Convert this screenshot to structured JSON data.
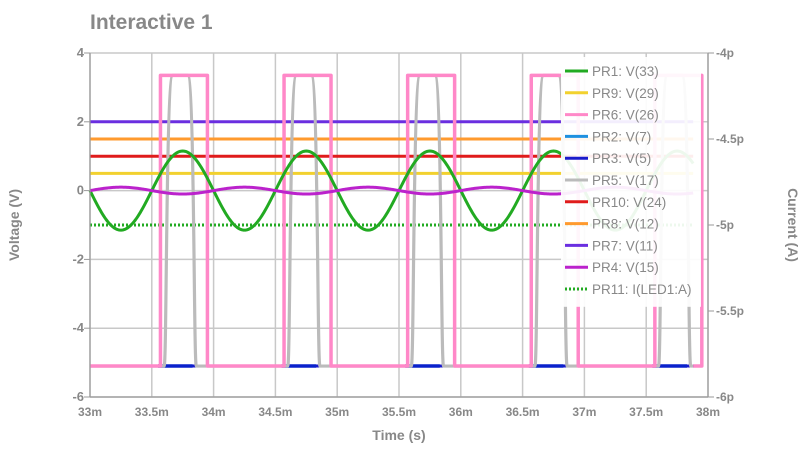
{
  "chart_data": {
    "type": "line",
    "title": "Interactive 1",
    "xlabel": "Time (s)",
    "ylabel_left": "Voltage (V)",
    "ylabel_right": "Current (A)",
    "xlim": [
      33,
      38
    ],
    "ylim_left": [
      -6,
      4
    ],
    "ylim_right": [
      -6,
      -4
    ],
    "x_ticks": [
      33,
      33.5,
      34,
      34.5,
      35,
      35.5,
      36,
      36.5,
      37,
      37.5,
      38
    ],
    "x_tick_labels": [
      "33m",
      "33.5m",
      "34m",
      "34.5m",
      "35m",
      "35.5m",
      "36m",
      "36.5m",
      "37m",
      "37.5m",
      "38m"
    ],
    "y_left_ticks": [
      4,
      2,
      0,
      -2,
      -4,
      -6
    ],
    "y_left_tick_labels": [
      "4",
      "2",
      "0",
      "-2",
      "-4",
      "-6"
    ],
    "y_right_ticks": [
      -4,
      -4.5,
      -5,
      -5.5,
      -6
    ],
    "y_right_tick_labels": [
      "-4p",
      "-4.5p",
      "-5p",
      "-5.5p",
      "-6p"
    ],
    "x_unit_note": "time in ms",
    "pulse_period": 1,
    "pulse_starts": [
      33.57,
      34.57,
      35.57,
      36.57,
      37.57
    ],
    "sine": {
      "center": 0,
      "amplitude": 1.15,
      "period": 1,
      "trough_at": 33.25
    },
    "series": [
      {
        "name": "PR1: V(33)",
        "color": "#22aa22",
        "kind": "sine",
        "axis": "left"
      },
      {
        "name": "PR9: V(29)",
        "color": "#f2d12e",
        "kind": "const",
        "value": 0.5,
        "axis": "left"
      },
      {
        "name": "PR6: V(26)",
        "color": "#ff88c8",
        "kind": "pulse",
        "low": -5.1,
        "high": 3.35,
        "width": 0.38,
        "axis": "left"
      },
      {
        "name": "PR2: V(7)",
        "color": "#1e90e0",
        "kind": "const",
        "value": -5.1,
        "axis": "left"
      },
      {
        "name": "PR3: V(5)",
        "color": "#1a1acc",
        "kind": "low-blips",
        "value": -5.1,
        "axis": "left"
      },
      {
        "name": "PR5: V(17)",
        "color": "#bbbbbb",
        "kind": "pulse-soft",
        "low": -5.1,
        "high": 3.35,
        "width": 0.26,
        "axis": "left"
      },
      {
        "name": "PR10: V(24)",
        "color": "#e01b1b",
        "kind": "const",
        "value": 1.0,
        "axis": "left"
      },
      {
        "name": "PR8: V(12)",
        "color": "#ff9a2e",
        "kind": "const",
        "value": 1.5,
        "axis": "left"
      },
      {
        "name": "PR7: V(11)",
        "color": "#6a2ee0",
        "kind": "const",
        "value": 2.0,
        "axis": "left"
      },
      {
        "name": "PR4: V(15)",
        "color": "#bb22cc",
        "kind": "small-wave",
        "center": 0,
        "amplitude": 0.1,
        "axis": "left"
      },
      {
        "name": "PR11: I(LED1:A)",
        "color": "#22aa22",
        "kind": "dotted-const",
        "value": -5.0,
        "axis": "right"
      }
    ]
  }
}
